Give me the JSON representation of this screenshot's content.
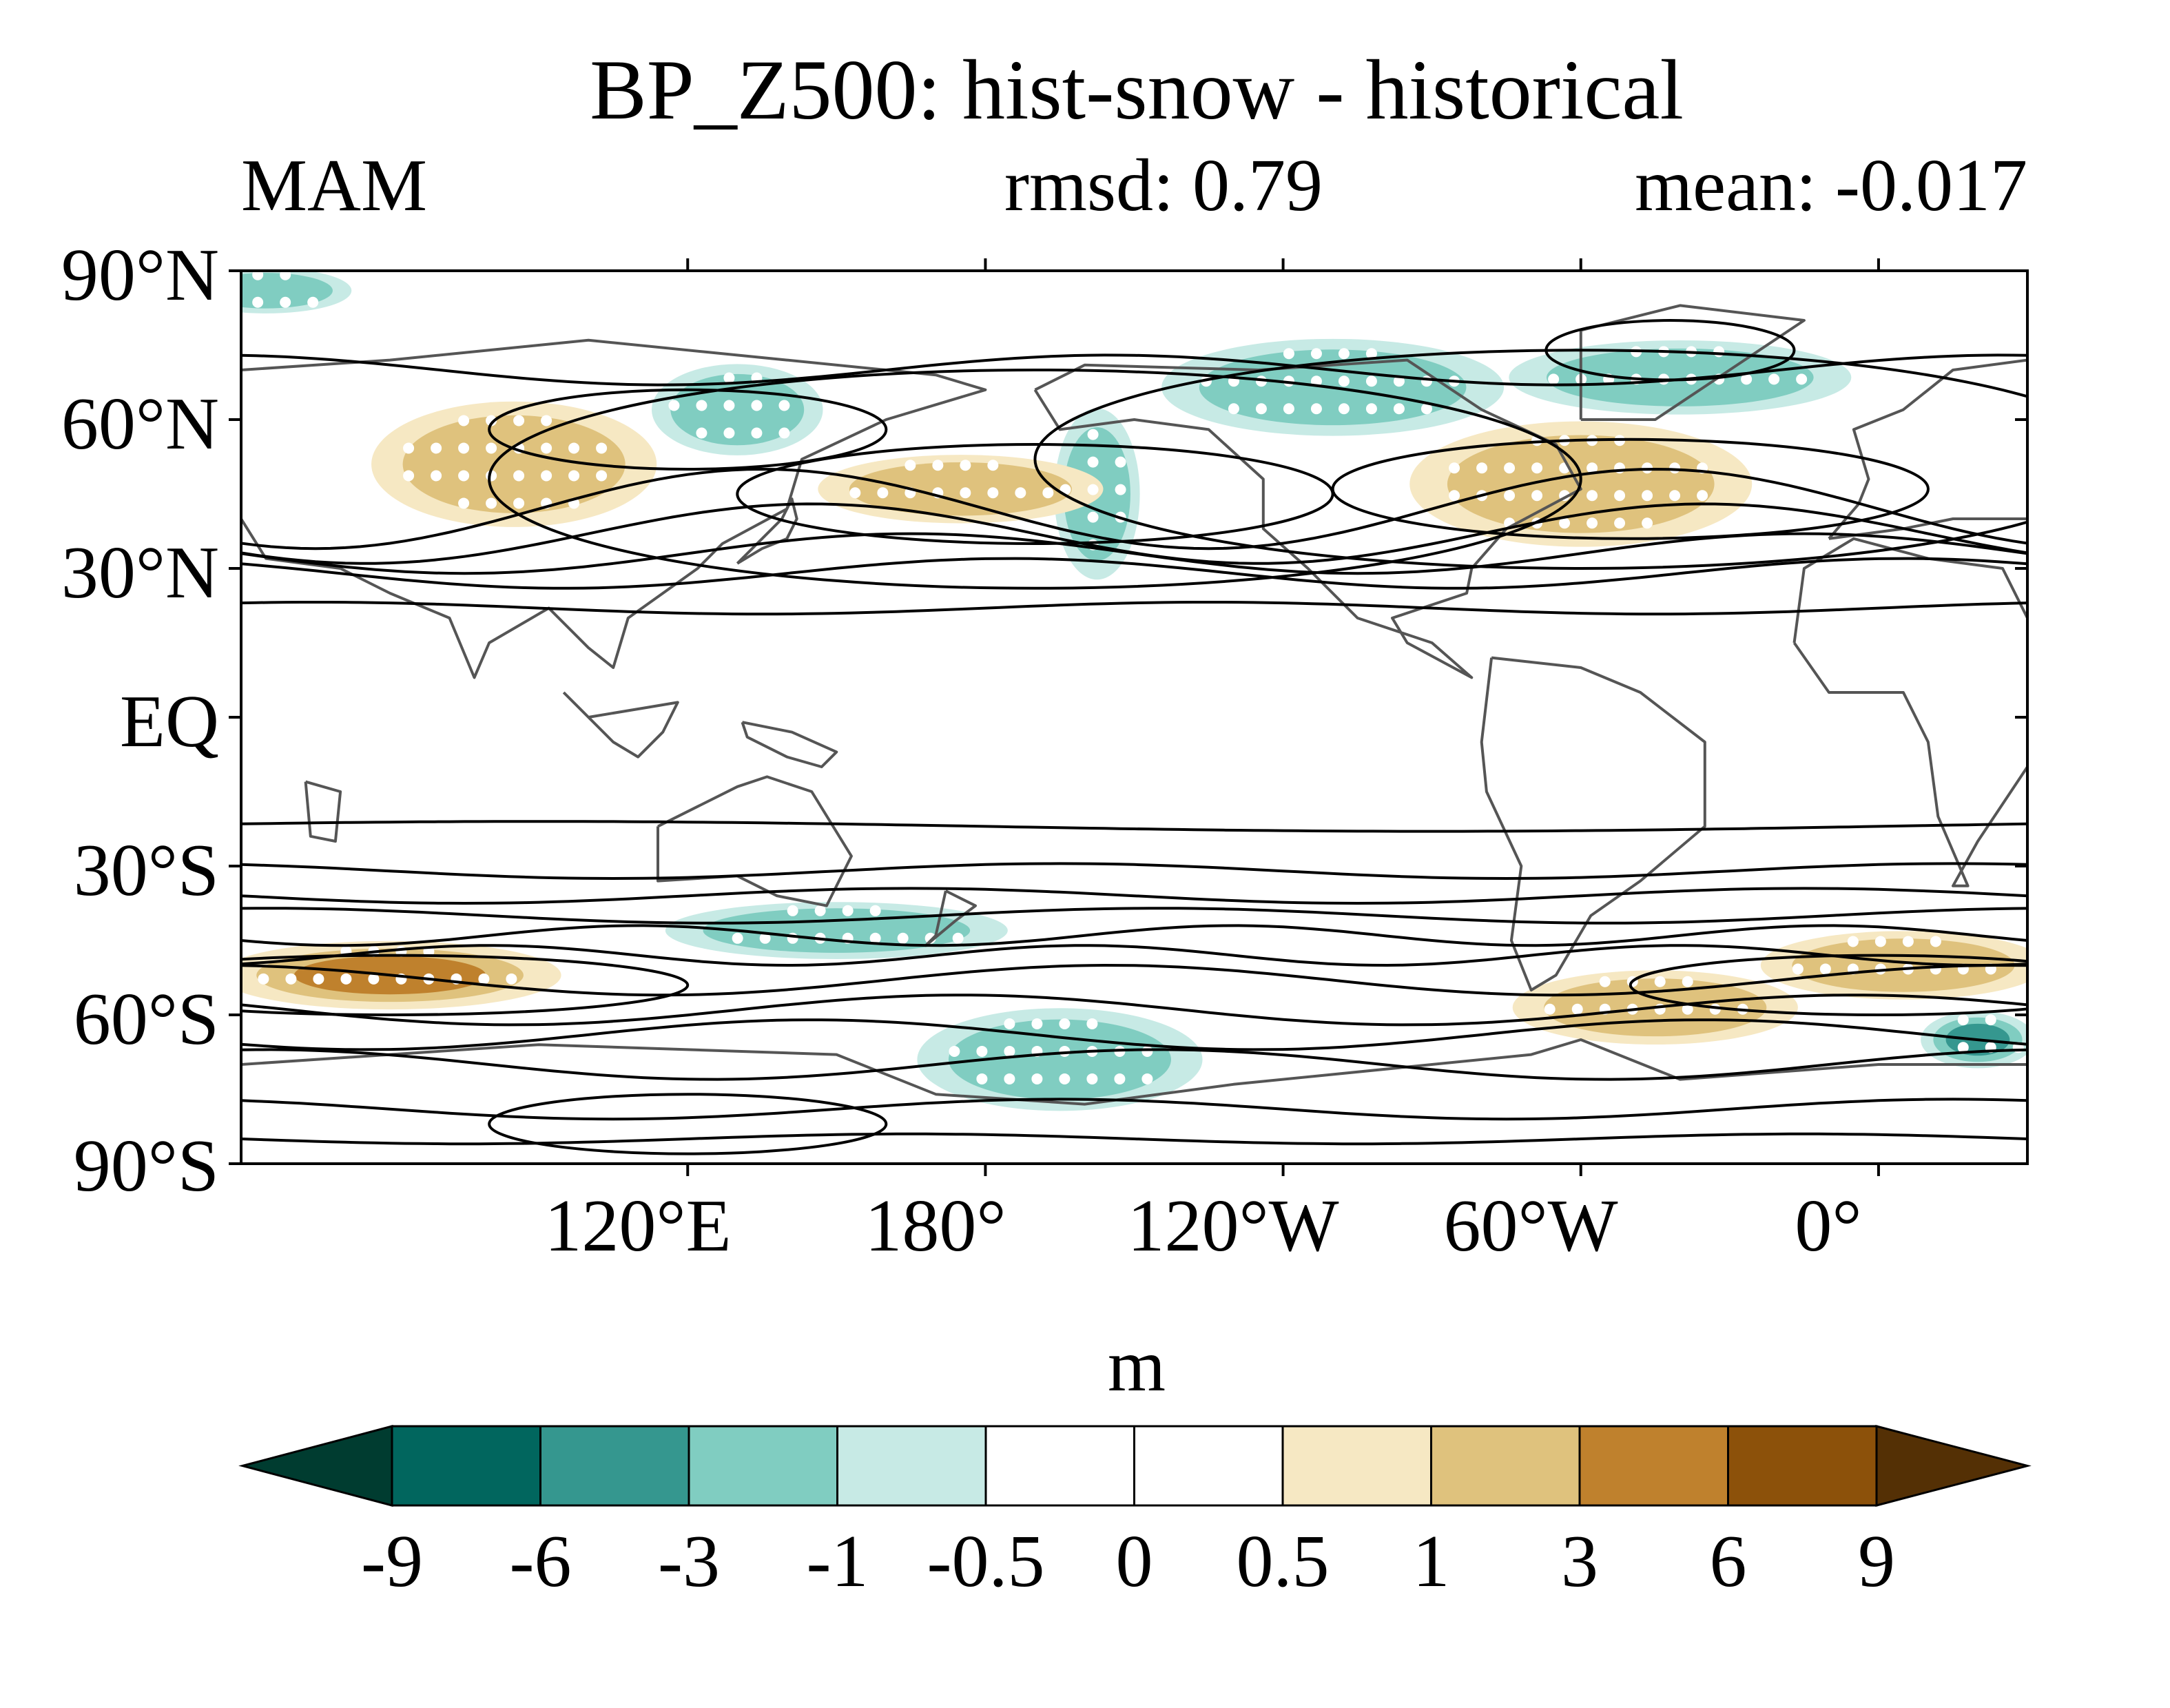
{
  "title": "BP_Z500: hist-snow - historical",
  "season": "MAM",
  "rmsd_text": "rmsd: 0.79",
  "mean_text": "mean: -0.017",
  "y_tick_labels": [
    "90°N",
    "60°N",
    "30°N",
    "EQ",
    "30°S",
    "60°S",
    "90°S"
  ],
  "x_tick_labels": [
    "120°E",
    "180°",
    "120°W",
    "60°W",
    "0°"
  ],
  "colorbar": {
    "unit": "m",
    "labels": [
      "-9",
      "-6",
      "-3",
      "-1",
      "-0.5",
      "0",
      "0.5",
      "1",
      "3",
      "6",
      "9"
    ],
    "colors": [
      "#003c30",
      "#01665e",
      "#35978f",
      "#80cdc1",
      "#c7eae5",
      "#ffffff",
      "#ffffff",
      "#f6e8c3",
      "#dfc27d",
      "#bf812d",
      "#8c510a",
      "#543005"
    ]
  },
  "chart_data": {
    "type": "heatmap",
    "title": "BP_Z500: hist-snow - historical",
    "subtitle_left": "MAM",
    "subtitle_center": "rmsd: 0.79",
    "subtitle_right": "mean: -0.017",
    "projection": "cylindrical equidistant, centered 150°W",
    "lon_range": [
      30,
      390
    ],
    "lat_range": [
      -90,
      90
    ],
    "overlays": [
      "black climatology contours",
      "gray coastlines",
      "white stippling for significance"
    ],
    "colorbar_levels": [
      -9,
      -6,
      -3,
      -1,
      -0.5,
      0,
      0.5,
      1,
      3,
      6,
      9
    ],
    "anomaly_regions": [
      {
        "lon": [
          20,
          50
        ],
        "lat": [
          82,
          90
        ],
        "sign": "negative",
        "magnitude": -2
      },
      {
        "lon": [
          60,
          110
        ],
        "lat": [
          40,
          62
        ],
        "sign": "positive",
        "magnitude": 2
      },
      {
        "lon": [
          115,
          145
        ],
        "lat": [
          54,
          70
        ],
        "sign": "negative",
        "magnitude": -2
      },
      {
        "lon": [
          195,
          210
        ],
        "lat": [
          30,
          60
        ],
        "sign": "negative",
        "magnitude": -2
      },
      {
        "lon": [
          150,
          200
        ],
        "lat": [
          40,
          52
        ],
        "sign": "positive",
        "magnitude": 1.5
      },
      {
        "lon": [
          220,
          280
        ],
        "lat": [
          58,
          75
        ],
        "sign": "negative",
        "magnitude": -2
      },
      {
        "lon": [
          270,
          330
        ],
        "lat": [
          36,
          58
        ],
        "sign": "positive",
        "magnitude": 3
      },
      {
        "lon": [
          290,
          350
        ],
        "lat": [
          62,
          75
        ],
        "sign": "negative",
        "magnitude": -2
      },
      {
        "lon": [
          30,
          90
        ],
        "lat": [
          -58,
          -46
        ],
        "sign": "positive",
        "magnitude": 4
      },
      {
        "lon": [
          120,
          180
        ],
        "lat": [
          -48,
          -38
        ],
        "sign": "negative",
        "magnitude": -2
      },
      {
        "lon": [
          170,
          220
        ],
        "lat": [
          -78,
          -60
        ],
        "sign": "negative",
        "magnitude": -3
      },
      {
        "lon": [
          290,
          340
        ],
        "lat": [
          -65,
          -52
        ],
        "sign": "positive",
        "magnitude": 3
      },
      {
        "lon": [
          340,
          390
        ],
        "lat": [
          -56,
          -44
        ],
        "sign": "positive",
        "magnitude": 3
      },
      {
        "lon": [
          370,
          390
        ],
        "lat": [
          -70,
          -60
        ],
        "sign": "negative",
        "magnitude": -4
      }
    ]
  }
}
